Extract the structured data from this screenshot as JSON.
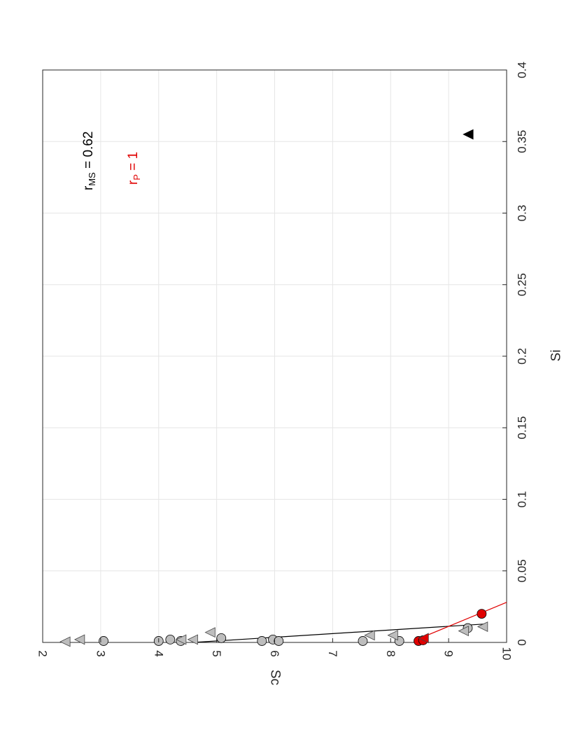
{
  "chart_data": {
    "type": "scatter",
    "title": "",
    "xlabel": "Si",
    "ylabel": "Sc",
    "xlim": [
      0,
      0.4
    ],
    "ylim": [
      2,
      10
    ],
    "x_ticks": [
      "0",
      "0.05",
      "0.1",
      "0.15",
      "0.2",
      "0.25",
      "0.3",
      "0.35",
      "0.4"
    ],
    "y_ticks": [
      "2",
      "3",
      "4",
      "5",
      "6",
      "7",
      "8",
      "9",
      "10"
    ],
    "grid": true,
    "rotated": "90deg clockwise (Si axis on the right side, Sc axis along the bottom)",
    "series": [
      {
        "marker": "circle",
        "color": "#bdbdbd",
        "points": [
          {
            "x": 0.001,
            "y": 3.05
          },
          {
            "x": 0.001,
            "y": 4.0
          },
          {
            "x": 0.002,
            "y": 4.2
          },
          {
            "x": 0.001,
            "y": 4.38
          },
          {
            "x": 0.003,
            "y": 5.08
          },
          {
            "x": 0.001,
            "y": 5.78
          },
          {
            "x": 0.002,
            "y": 5.97
          },
          {
            "x": 0.001,
            "y": 6.07
          },
          {
            "x": 0.001,
            "y": 7.52
          },
          {
            "x": 0.001,
            "y": 8.15
          },
          {
            "x": 0.01,
            "y": 9.33
          }
        ]
      },
      {
        "marker": "triangle",
        "color": "#bdbdbd",
        "points": [
          {
            "x": 0.0005,
            "y": 2.4
          },
          {
            "x": 0.002,
            "y": 2.65
          },
          {
            "x": 0.002,
            "y": 4.4
          },
          {
            "x": 0.002,
            "y": 4.6
          },
          {
            "x": 0.007,
            "y": 4.9
          },
          {
            "x": 0.005,
            "y": 7.65
          },
          {
            "x": 0.005,
            "y": 8.05
          },
          {
            "x": 0.008,
            "y": 9.27
          },
          {
            "x": 0.011,
            "y": 9.6
          }
        ]
      },
      {
        "marker": "circle",
        "color": "#e00000",
        "points": [
          {
            "x": 0.001,
            "y": 8.48
          },
          {
            "x": 0.0015,
            "y": 8.56
          },
          {
            "x": 0.02,
            "y": 9.57
          }
        ]
      },
      {
        "marker": "triangle",
        "color": "#e00000",
        "points": [
          {
            "x": 0.003,
            "y": 8.58
          }
        ]
      },
      {
        "marker": "triangle",
        "color": "#000000",
        "points": [
          {
            "x": 0.355,
            "y": 9.35
          }
        ]
      }
    ],
    "fit_lines": [
      {
        "color": "#000000",
        "x": [
          0.0,
          0.013
        ],
        "y": [
          4.6,
          9.67
        ]
      },
      {
        "color": "#e00000",
        "x": [
          0.002,
          0.028
        ],
        "y": [
          8.45,
          10.0
        ]
      }
    ],
    "annotations": [
      {
        "label": "r",
        "sub": "MS",
        "rest": " = 0.62",
        "color": "#000000"
      },
      {
        "label": "r",
        "sub": "P",
        "rest": " = 1",
        "color": "#e00000"
      }
    ]
  }
}
